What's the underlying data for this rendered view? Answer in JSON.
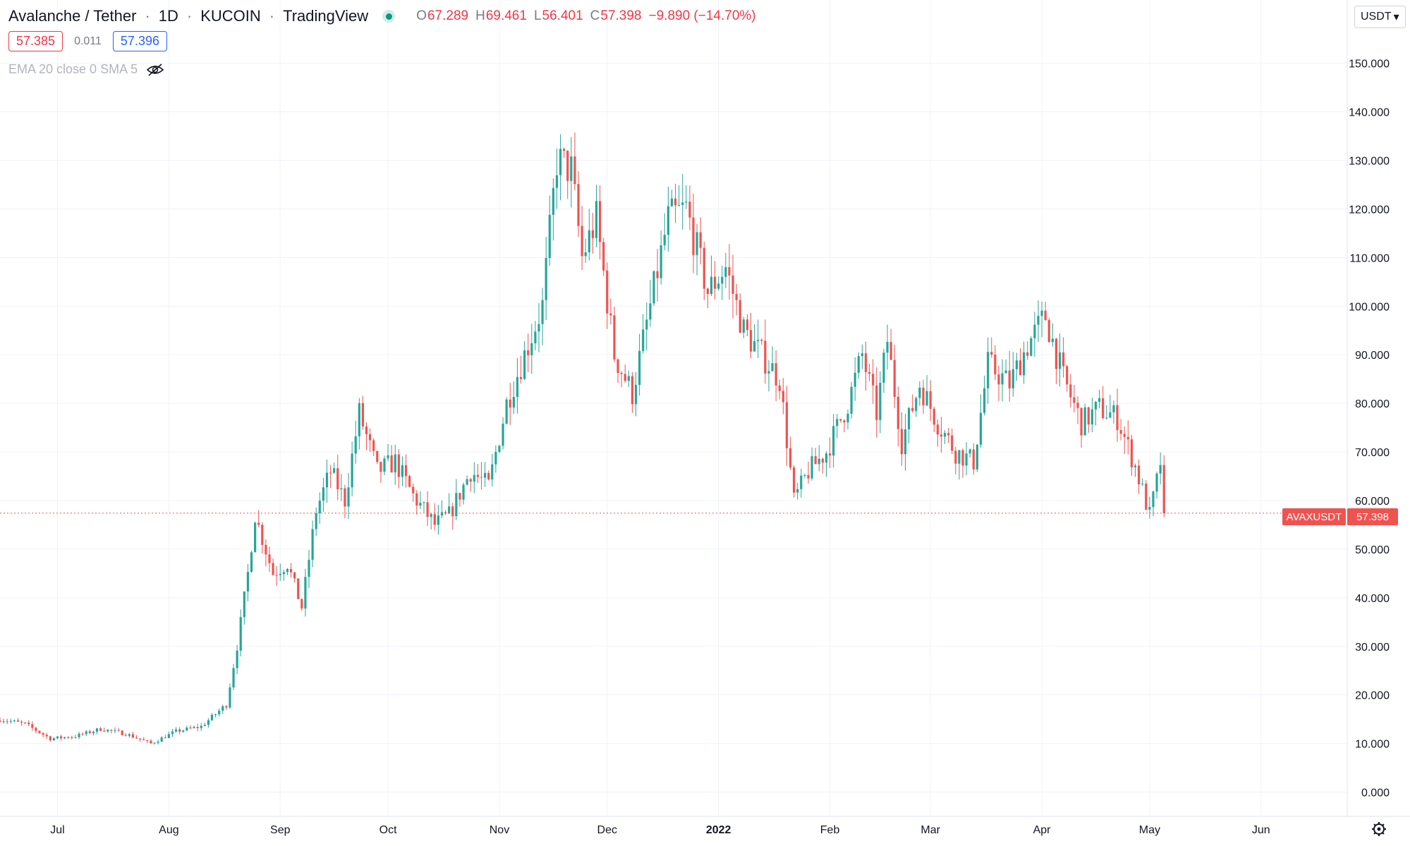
{
  "header": {
    "symbol_name": "Avalanche / Tether",
    "interval": "1D",
    "exchange": "KUCOIN",
    "provider": "TradingView",
    "status": "market-open-dot"
  },
  "ohlc": {
    "o_label": "O",
    "o_value": "67.289",
    "h_label": "H",
    "h_value": "69.461",
    "l_label": "L",
    "l_value": "56.401",
    "c_label": "C",
    "c_value": "57.398",
    "change": "−9.890 (−14.70%)"
  },
  "quote": {
    "bid": "57.385",
    "spread": "0.011",
    "ask": "57.396"
  },
  "indicator": {
    "label": "EMA 20 close 0 SMA 5",
    "visibility_icon": "eye-off-icon"
  },
  "currency_button": {
    "label": "USDT"
  },
  "settings_icon": "gear-icon",
  "colors": {
    "up": "#26a69a",
    "down": "#ef5350",
    "grid": "#f0f3fa",
    "text": "#131722",
    "muted": "#787b86"
  },
  "chart_data": {
    "type": "candlestick",
    "symbol": "AVAXUSDT",
    "last_price": 57.398,
    "last_price_label": "57.398",
    "ylim": [
      -5,
      163
    ],
    "y_ticks": [
      "0.000",
      "10.000",
      "20.000",
      "30.000",
      "40.000",
      "50.000",
      "60.000",
      "70.000",
      "80.000",
      "90.000",
      "100.000",
      "110.000",
      "120.000",
      "130.000",
      "140.000",
      "150.000"
    ],
    "x_ticks": [
      {
        "label": "Jul",
        "bold": false
      },
      {
        "label": "Aug",
        "bold": false
      },
      {
        "label": "Sep",
        "bold": false
      },
      {
        "label": "Oct",
        "bold": false
      },
      {
        "label": "Nov",
        "bold": false
      },
      {
        "label": "Dec",
        "bold": false
      },
      {
        "label": "2022",
        "bold": true
      },
      {
        "label": "Feb",
        "bold": false
      },
      {
        "label": "Mar",
        "bold": false
      },
      {
        "label": "Apr",
        "bold": false
      },
      {
        "label": "May",
        "bold": false
      },
      {
        "label": "Jun",
        "bold": false
      }
    ],
    "x_start": "2021-06-15",
    "x_end": "2022-06-25",
    "close_anchors": [
      [
        "2021-06-15",
        15.0
      ],
      [
        "2021-06-22",
        14.0
      ],
      [
        "2021-06-29",
        11.0
      ],
      [
        "2021-07-06",
        11.5
      ],
      [
        "2021-07-13",
        13.0
      ],
      [
        "2021-07-20",
        12.0
      ],
      [
        "2021-07-27",
        10.0
      ],
      [
        "2021-08-03",
        12.5
      ],
      [
        "2021-08-10",
        13.5
      ],
      [
        "2021-08-17",
        18.0
      ],
      [
        "2021-08-20",
        30.0
      ],
      [
        "2021-08-23",
        45.0
      ],
      [
        "2021-08-25",
        57.0
      ],
      [
        "2021-08-30",
        45.0
      ],
      [
        "2021-09-03",
        47.0
      ],
      [
        "2021-09-07",
        38.0
      ],
      [
        "2021-09-11",
        58.0
      ],
      [
        "2021-09-15",
        66.0
      ],
      [
        "2021-09-19",
        60.0
      ],
      [
        "2021-09-23",
        78.0
      ],
      [
        "2021-09-28",
        66.0
      ],
      [
        "2021-10-03",
        68.0
      ],
      [
        "2021-10-08",
        61.0
      ],
      [
        "2021-10-14",
        55.0
      ],
      [
        "2021-10-18",
        57.0
      ],
      [
        "2021-10-24",
        66.0
      ],
      [
        "2021-10-29",
        63.0
      ],
      [
        "2021-11-03",
        80.0
      ],
      [
        "2021-11-08",
        90.0
      ],
      [
        "2021-11-13",
        100.0
      ],
      [
        "2021-11-17",
        130.0
      ],
      [
        "2021-11-21",
        128.0
      ],
      [
        "2021-11-24",
        110.0
      ],
      [
        "2021-11-28",
        118.0
      ],
      [
        "2021-12-03",
        90.0
      ],
      [
        "2021-12-08",
        82.0
      ],
      [
        "2021-12-13",
        100.0
      ],
      [
        "2021-12-18",
        118.0
      ],
      [
        "2021-12-23",
        120.0
      ],
      [
        "2021-12-29",
        103.0
      ],
      [
        "2022-01-03",
        108.0
      ],
      [
        "2022-01-08",
        95.0
      ],
      [
        "2022-01-13",
        90.0
      ],
      [
        "2022-01-18",
        85.0
      ],
      [
        "2022-01-22",
        60.0
      ],
      [
        "2022-01-26",
        66.0
      ],
      [
        "2022-01-31",
        70.0
      ],
      [
        "2022-02-06",
        80.0
      ],
      [
        "2022-02-10",
        90.0
      ],
      [
        "2022-02-14",
        78.0
      ],
      [
        "2022-02-17",
        93.0
      ],
      [
        "2022-02-21",
        72.0
      ],
      [
        "2022-02-26",
        84.0
      ],
      [
        "2022-03-03",
        76.0
      ],
      [
        "2022-03-08",
        70.0
      ],
      [
        "2022-03-13",
        68.0
      ],
      [
        "2022-03-17",
        88.0
      ],
      [
        "2022-03-23",
        84.0
      ],
      [
        "2022-03-28",
        92.0
      ],
      [
        "2022-04-02",
        98.0
      ],
      [
        "2022-04-07",
        85.0
      ],
      [
        "2022-04-12",
        76.0
      ],
      [
        "2022-04-17",
        79.0
      ],
      [
        "2022-04-22",
        77.0
      ],
      [
        "2022-04-27",
        67.0
      ],
      [
        "2022-05-01",
        57.0
      ],
      [
        "2022-05-04",
        67.3
      ],
      [
        "2022-05-05",
        57.4
      ]
    ]
  }
}
